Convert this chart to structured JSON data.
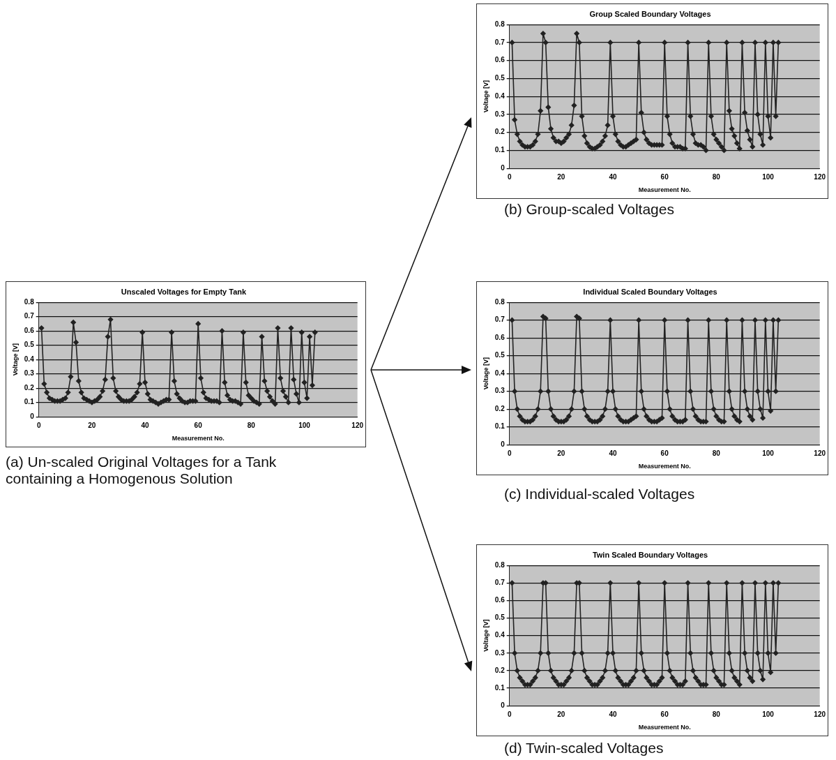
{
  "chart_data": [
    {
      "type": "line",
      "title": "Unscaled Voltages for Empty Tank",
      "xlabel": "Measurement No.",
      "ylabel": "Voltage [V]",
      "annotations": [
        "(a)  Un-scaled Original Voltages for a Tank containing a Homogenous Solution"
      ],
      "xlim": [
        0,
        120
      ],
      "xticks": [
        0,
        20,
        40,
        60,
        80,
        100,
        120
      ],
      "ylim": [
        0,
        0.8
      ],
      "yticks": [
        0,
        0.1,
        0.2,
        0.3,
        0.4,
        0.5,
        0.6,
        0.7,
        0.8
      ],
      "grid": "y",
      "legend": false,
      "marker": "diamond",
      "line_style": "solid",
      "x": [
        1,
        2,
        3,
        4,
        5,
        6,
        7,
        8,
        9,
        10,
        11,
        12,
        13,
        14,
        15,
        16,
        17,
        18,
        19,
        20,
        21,
        22,
        23,
        24,
        25,
        26,
        27,
        28,
        29,
        30,
        31,
        32,
        33,
        34,
        35,
        36,
        37,
        38,
        39,
        40,
        41,
        42,
        43,
        44,
        45,
        46,
        47,
        48,
        49,
        50,
        51,
        52,
        53,
        54,
        55,
        56,
        57,
        58,
        59,
        60,
        61,
        62,
        63,
        64,
        65,
        66,
        67,
        68,
        69,
        70,
        71,
        72,
        73,
        74,
        75,
        76,
        77,
        78,
        79,
        80,
        81,
        82,
        83,
        84,
        85,
        86,
        87,
        88,
        89,
        90,
        91,
        92,
        93,
        94,
        95,
        96,
        97,
        98,
        99,
        100,
        101,
        102,
        103,
        104
      ],
      "series": [
        {
          "color": "#222222",
          "values": [
            0.62,
            0.23,
            0.17,
            0.13,
            0.12,
            0.11,
            0.11,
            0.11,
            0.12,
            0.13,
            0.17,
            0.28,
            0.66,
            0.52,
            0.25,
            0.17,
            0.13,
            0.12,
            0.11,
            0.1,
            0.11,
            0.12,
            0.14,
            0.18,
            0.26,
            0.56,
            0.68,
            0.27,
            0.18,
            0.14,
            0.12,
            0.11,
            0.11,
            0.11,
            0.12,
            0.14,
            0.17,
            0.23,
            0.59,
            0.24,
            0.16,
            0.12,
            0.11,
            0.1,
            0.09,
            0.1,
            0.11,
            0.12,
            0.12,
            0.59,
            0.25,
            0.16,
            0.13,
            0.11,
            0.1,
            0.1,
            0.11,
            0.11,
            0.11,
            0.65,
            0.27,
            0.17,
            0.13,
            0.12,
            0.11,
            0.11,
            0.11,
            0.1,
            0.6,
            0.24,
            0.15,
            0.12,
            0.11,
            0.11,
            0.1,
            0.09,
            0.59,
            0.24,
            0.15,
            0.13,
            0.11,
            0.1,
            0.09,
            0.56,
            0.25,
            0.18,
            0.14,
            0.11,
            0.09,
            0.62,
            0.27,
            0.18,
            0.14,
            0.1,
            0.62,
            0.26,
            0.16,
            0.1,
            0.59,
            0.24,
            0.13,
            0.56,
            0.22,
            0.59
          ]
        }
      ]
    },
    {
      "type": "line",
      "title": "Group Scaled Boundary Voltages",
      "xlabel": "Measurement No.",
      "ylabel": "Voltage [V]",
      "annotations": [
        "(b) Group-scaled Voltages"
      ],
      "xlim": [
        0,
        120
      ],
      "xticks": [
        0,
        20,
        40,
        60,
        80,
        100,
        120
      ],
      "ylim": [
        0,
        0.8
      ],
      "yticks": [
        0,
        0.1,
        0.2,
        0.3,
        0.4,
        0.5,
        0.6,
        0.7,
        0.8
      ],
      "grid": "y",
      "legend": false,
      "marker": "diamond",
      "line_style": "solid",
      "x": [
        1,
        2,
        3,
        4,
        5,
        6,
        7,
        8,
        9,
        10,
        11,
        12,
        13,
        14,
        15,
        16,
        17,
        18,
        19,
        20,
        21,
        22,
        23,
        24,
        25,
        26,
        27,
        28,
        29,
        30,
        31,
        32,
        33,
        34,
        35,
        36,
        37,
        38,
        39,
        40,
        41,
        42,
        43,
        44,
        45,
        46,
        47,
        48,
        49,
        50,
        51,
        52,
        53,
        54,
        55,
        56,
        57,
        58,
        59,
        60,
        61,
        62,
        63,
        64,
        65,
        66,
        67,
        68,
        69,
        70,
        71,
        72,
        73,
        74,
        75,
        76,
        77,
        78,
        79,
        80,
        81,
        82,
        83,
        84,
        85,
        86,
        87,
        88,
        89,
        90,
        91,
        92,
        93,
        94,
        95,
        96,
        97,
        98,
        99,
        100,
        101,
        102,
        103,
        104
      ],
      "series": [
        {
          "color": "#222222",
          "values": [
            0.7,
            0.27,
            0.19,
            0.15,
            0.13,
            0.12,
            0.12,
            0.12,
            0.13,
            0.15,
            0.19,
            0.32,
            0.75,
            0.7,
            0.34,
            0.22,
            0.17,
            0.15,
            0.15,
            0.14,
            0.15,
            0.17,
            0.19,
            0.24,
            0.35,
            0.75,
            0.7,
            0.29,
            0.18,
            0.14,
            0.12,
            0.11,
            0.11,
            0.12,
            0.13,
            0.15,
            0.18,
            0.24,
            0.7,
            0.29,
            0.19,
            0.15,
            0.13,
            0.12,
            0.12,
            0.13,
            0.14,
            0.15,
            0.16,
            0.7,
            0.31,
            0.2,
            0.16,
            0.14,
            0.13,
            0.13,
            0.13,
            0.13,
            0.13,
            0.7,
            0.29,
            0.19,
            0.14,
            0.12,
            0.12,
            0.12,
            0.11,
            0.11,
            0.7,
            0.29,
            0.19,
            0.14,
            0.13,
            0.13,
            0.12,
            0.1,
            0.7,
            0.29,
            0.19,
            0.16,
            0.14,
            0.12,
            0.1,
            0.7,
            0.32,
            0.22,
            0.18,
            0.14,
            0.11,
            0.7,
            0.31,
            0.21,
            0.16,
            0.12,
            0.7,
            0.3,
            0.19,
            0.13,
            0.7,
            0.29,
            0.17,
            0.7,
            0.29,
            0.7
          ]
        }
      ]
    },
    {
      "type": "line",
      "title": "Individual Scaled Boundary Voltages",
      "xlabel": "Measurement No.",
      "ylabel": "Voltage [V]",
      "annotations": [
        "(c) Individual-scaled Voltages"
      ],
      "xlim": [
        0,
        120
      ],
      "xticks": [
        0,
        20,
        40,
        60,
        80,
        100,
        120
      ],
      "ylim": [
        0,
        0.8
      ],
      "yticks": [
        0,
        0.1,
        0.2,
        0.3,
        0.4,
        0.5,
        0.6,
        0.7,
        0.8
      ],
      "grid": "y",
      "legend": false,
      "marker": "diamond",
      "line_style": "solid",
      "x": [
        1,
        2,
        3,
        4,
        5,
        6,
        7,
        8,
        9,
        10,
        11,
        12,
        13,
        14,
        15,
        16,
        17,
        18,
        19,
        20,
        21,
        22,
        23,
        24,
        25,
        26,
        27,
        28,
        29,
        30,
        31,
        32,
        33,
        34,
        35,
        36,
        37,
        38,
        39,
        40,
        41,
        42,
        43,
        44,
        45,
        46,
        47,
        48,
        49,
        50,
        51,
        52,
        53,
        54,
        55,
        56,
        57,
        58,
        59,
        60,
        61,
        62,
        63,
        64,
        65,
        66,
        67,
        68,
        69,
        70,
        71,
        72,
        73,
        74,
        75,
        76,
        77,
        78,
        79,
        80,
        81,
        82,
        83,
        84,
        85,
        86,
        87,
        88,
        89,
        90,
        91,
        92,
        93,
        94,
        95,
        96,
        97,
        98,
        99,
        100,
        101,
        102,
        103,
        104
      ],
      "series": [
        {
          "color": "#222222",
          "values": [
            0.7,
            0.3,
            0.2,
            0.16,
            0.14,
            0.13,
            0.13,
            0.13,
            0.14,
            0.16,
            0.2,
            0.3,
            0.72,
            0.71,
            0.3,
            0.2,
            0.16,
            0.14,
            0.13,
            0.13,
            0.13,
            0.14,
            0.16,
            0.2,
            0.3,
            0.72,
            0.71,
            0.3,
            0.2,
            0.16,
            0.14,
            0.13,
            0.13,
            0.13,
            0.14,
            0.16,
            0.2,
            0.3,
            0.7,
            0.3,
            0.2,
            0.16,
            0.14,
            0.13,
            0.13,
            0.13,
            0.14,
            0.15,
            0.16,
            0.7,
            0.3,
            0.2,
            0.16,
            0.14,
            0.13,
            0.13,
            0.13,
            0.14,
            0.15,
            0.7,
            0.3,
            0.2,
            0.16,
            0.14,
            0.13,
            0.13,
            0.13,
            0.14,
            0.7,
            0.3,
            0.2,
            0.16,
            0.14,
            0.13,
            0.13,
            0.13,
            0.7,
            0.3,
            0.2,
            0.16,
            0.14,
            0.13,
            0.13,
            0.7,
            0.3,
            0.2,
            0.16,
            0.14,
            0.13,
            0.7,
            0.3,
            0.2,
            0.16,
            0.14,
            0.7,
            0.3,
            0.2,
            0.15,
            0.7,
            0.3,
            0.19,
            0.7,
            0.3,
            0.7
          ]
        }
      ]
    },
    {
      "type": "line",
      "title": "Twin Scaled Boundary Voltages",
      "xlabel": "Measurement No.",
      "ylabel": "Voltage [V]",
      "annotations": [
        "(d) Twin-scaled Voltages"
      ],
      "xlim": [
        0,
        120
      ],
      "xticks": [
        0,
        20,
        40,
        60,
        80,
        100,
        120
      ],
      "ylim": [
        0,
        0.8
      ],
      "yticks": [
        0,
        0.1,
        0.2,
        0.3,
        0.4,
        0.5,
        0.6,
        0.7,
        0.8
      ],
      "grid": "y",
      "legend": false,
      "marker": "diamond",
      "line_style": "solid",
      "x": [
        1,
        2,
        3,
        4,
        5,
        6,
        7,
        8,
        9,
        10,
        11,
        12,
        13,
        14,
        15,
        16,
        17,
        18,
        19,
        20,
        21,
        22,
        23,
        24,
        25,
        26,
        27,
        28,
        29,
        30,
        31,
        32,
        33,
        34,
        35,
        36,
        37,
        38,
        39,
        40,
        41,
        42,
        43,
        44,
        45,
        46,
        47,
        48,
        49,
        50,
        51,
        52,
        53,
        54,
        55,
        56,
        57,
        58,
        59,
        60,
        61,
        62,
        63,
        64,
        65,
        66,
        67,
        68,
        69,
        70,
        71,
        72,
        73,
        74,
        75,
        76,
        77,
        78,
        79,
        80,
        81,
        82,
        83,
        84,
        85,
        86,
        87,
        88,
        89,
        90,
        91,
        92,
        93,
        94,
        95,
        96,
        97,
        98,
        99,
        100,
        101,
        102,
        103,
        104
      ],
      "series": [
        {
          "color": "#222222",
          "values": [
            0.7,
            0.3,
            0.2,
            0.16,
            0.14,
            0.12,
            0.12,
            0.12,
            0.14,
            0.16,
            0.2,
            0.3,
            0.7,
            0.7,
            0.3,
            0.2,
            0.16,
            0.14,
            0.12,
            0.12,
            0.12,
            0.14,
            0.16,
            0.2,
            0.3,
            0.7,
            0.7,
            0.3,
            0.2,
            0.16,
            0.14,
            0.12,
            0.12,
            0.12,
            0.14,
            0.16,
            0.2,
            0.3,
            0.7,
            0.3,
            0.2,
            0.16,
            0.14,
            0.12,
            0.12,
            0.12,
            0.14,
            0.16,
            0.2,
            0.7,
            0.3,
            0.2,
            0.16,
            0.14,
            0.12,
            0.12,
            0.12,
            0.14,
            0.16,
            0.7,
            0.3,
            0.2,
            0.16,
            0.14,
            0.12,
            0.12,
            0.12,
            0.14,
            0.7,
            0.3,
            0.2,
            0.16,
            0.14,
            0.12,
            0.12,
            0.12,
            0.7,
            0.3,
            0.2,
            0.16,
            0.14,
            0.12,
            0.12,
            0.7,
            0.3,
            0.2,
            0.16,
            0.14,
            0.12,
            0.7,
            0.3,
            0.2,
            0.16,
            0.14,
            0.7,
            0.3,
            0.2,
            0.15,
            0.7,
            0.3,
            0.19,
            0.7,
            0.3,
            0.7
          ]
        }
      ]
    }
  ]
}
